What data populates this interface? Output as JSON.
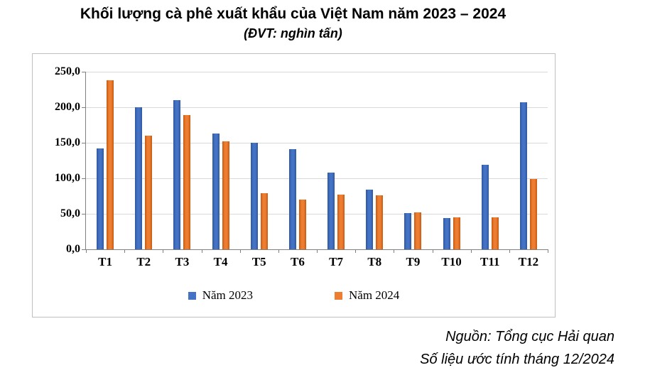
{
  "title": "Khối lượng cà phê xuất khẩu của Việt Nam năm 2023 – 2024",
  "subtitle": "(ĐVT: nghìn tấn)",
  "source": {
    "line1": "Nguồn: Tổng cục Hải quan",
    "line2": "Số liệu ước tính tháng 12/2024"
  },
  "chart_data": {
    "type": "bar",
    "title": "Khối lượng cà phê xuất khẩu của Việt Nam năm 2023 – 2024",
    "unit_label": "(ĐVT: nghìn tấn)",
    "categories": [
      "T1",
      "T2",
      "T3",
      "T4",
      "T5",
      "T6",
      "T7",
      "T8",
      "T9",
      "T10",
      "T11",
      "T12"
    ],
    "series": [
      {
        "name": "Năm 2023",
        "color": "#4472C4",
        "color_dark": "#2E579E",
        "values": [
          142,
          200,
          210,
          163,
          150,
          141,
          108,
          84,
          51,
          44,
          119,
          207
        ]
      },
      {
        "name": "Năm 2024",
        "color": "#ED7D31",
        "color_dark": "#C55A11",
        "values": [
          238,
          160,
          189,
          152,
          79,
          70,
          77,
          76,
          52,
          45,
          45,
          99
        ]
      }
    ],
    "ylim": [
      0,
      250
    ],
    "ytick_step": 50,
    "ytick_labels": [
      "0,0",
      "50,0",
      "100,0",
      "150,0",
      "200,0",
      "250,0"
    ],
    "grid": true,
    "legend_position": "bottom"
  }
}
